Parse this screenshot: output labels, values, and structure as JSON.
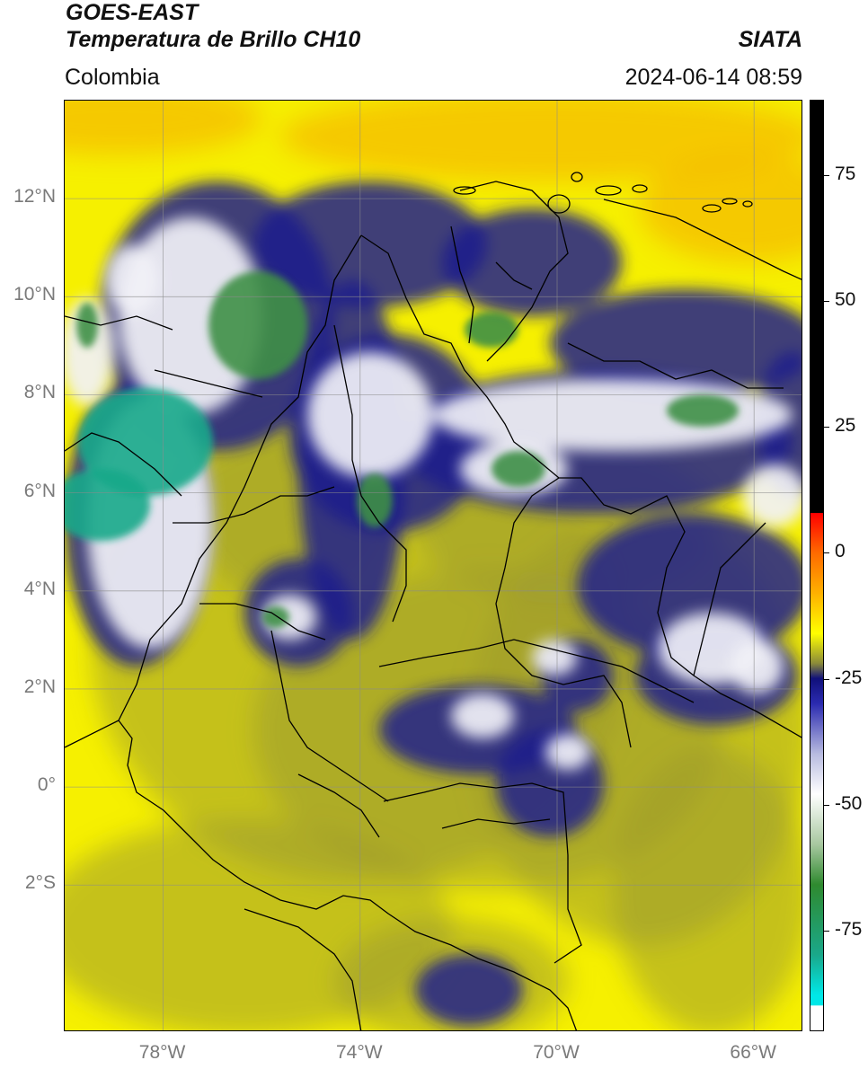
{
  "header": {
    "satellite": "GOES-EAST",
    "product": "Temperatura de Brillo CH10",
    "region": "Colombia",
    "agency": "SIATA",
    "timestamp": "2024-06-14 08:59"
  },
  "map": {
    "lon_range": [
      -80,
      -65
    ],
    "lat_range": [
      -5,
      14
    ],
    "lat_ticks": [
      {
        "value": 12,
        "label": "12°N"
      },
      {
        "value": 10,
        "label": "10°N"
      },
      {
        "value": 8,
        "label": "8°N"
      },
      {
        "value": 6,
        "label": "6°N"
      },
      {
        "value": 4,
        "label": "4°N"
      },
      {
        "value": 2,
        "label": "2°N"
      },
      {
        "value": 0,
        "label": "0°"
      },
      {
        "value": -2,
        "label": "2°S"
      }
    ],
    "lon_ticks": [
      {
        "value": -78,
        "label": "78°W"
      },
      {
        "value": -74,
        "label": "74°W"
      },
      {
        "value": -70,
        "label": "70°W"
      },
      {
        "value": -66,
        "label": "66°W"
      }
    ],
    "gridlines": true
  },
  "colorbar": {
    "range": [
      -95,
      90
    ],
    "ticks": [
      {
        "value": 75,
        "label": "75"
      },
      {
        "value": 50,
        "label": "50"
      },
      {
        "value": 25,
        "label": "25"
      },
      {
        "value": 0,
        "label": "0"
      },
      {
        "value": -25,
        "label": "-25"
      },
      {
        "value": -50,
        "label": "-50"
      },
      {
        "value": -75,
        "label": "-75"
      }
    ],
    "stops": [
      {
        "value": 90,
        "color": "#000000"
      },
      {
        "value": 8,
        "color": "#000000"
      },
      {
        "value": 7.9,
        "color": "#ff0000"
      },
      {
        "value": 0,
        "color": "#ff6a00"
      },
      {
        "value": -8,
        "color": "#ffb000"
      },
      {
        "value": -16,
        "color": "#ffff00"
      },
      {
        "value": -22,
        "color": "#8a8a3a"
      },
      {
        "value": -25,
        "color": "#10107a"
      },
      {
        "value": -30,
        "color": "#2b2bb0"
      },
      {
        "value": -40,
        "color": "#b8bbe0"
      },
      {
        "value": -48,
        "color": "#ffffff"
      },
      {
        "value": -58,
        "color": "#a8c8a0"
      },
      {
        "value": -66,
        "color": "#2f8a2f"
      },
      {
        "value": -80,
        "color": "#1aa88a"
      },
      {
        "value": -88,
        "color": "#00e8e8"
      },
      {
        "value": -90,
        "color": "#00e8e8"
      },
      {
        "value": -90.1,
        "color": "#ffffff"
      },
      {
        "value": -95,
        "color": "#ffffff"
      }
    ]
  }
}
